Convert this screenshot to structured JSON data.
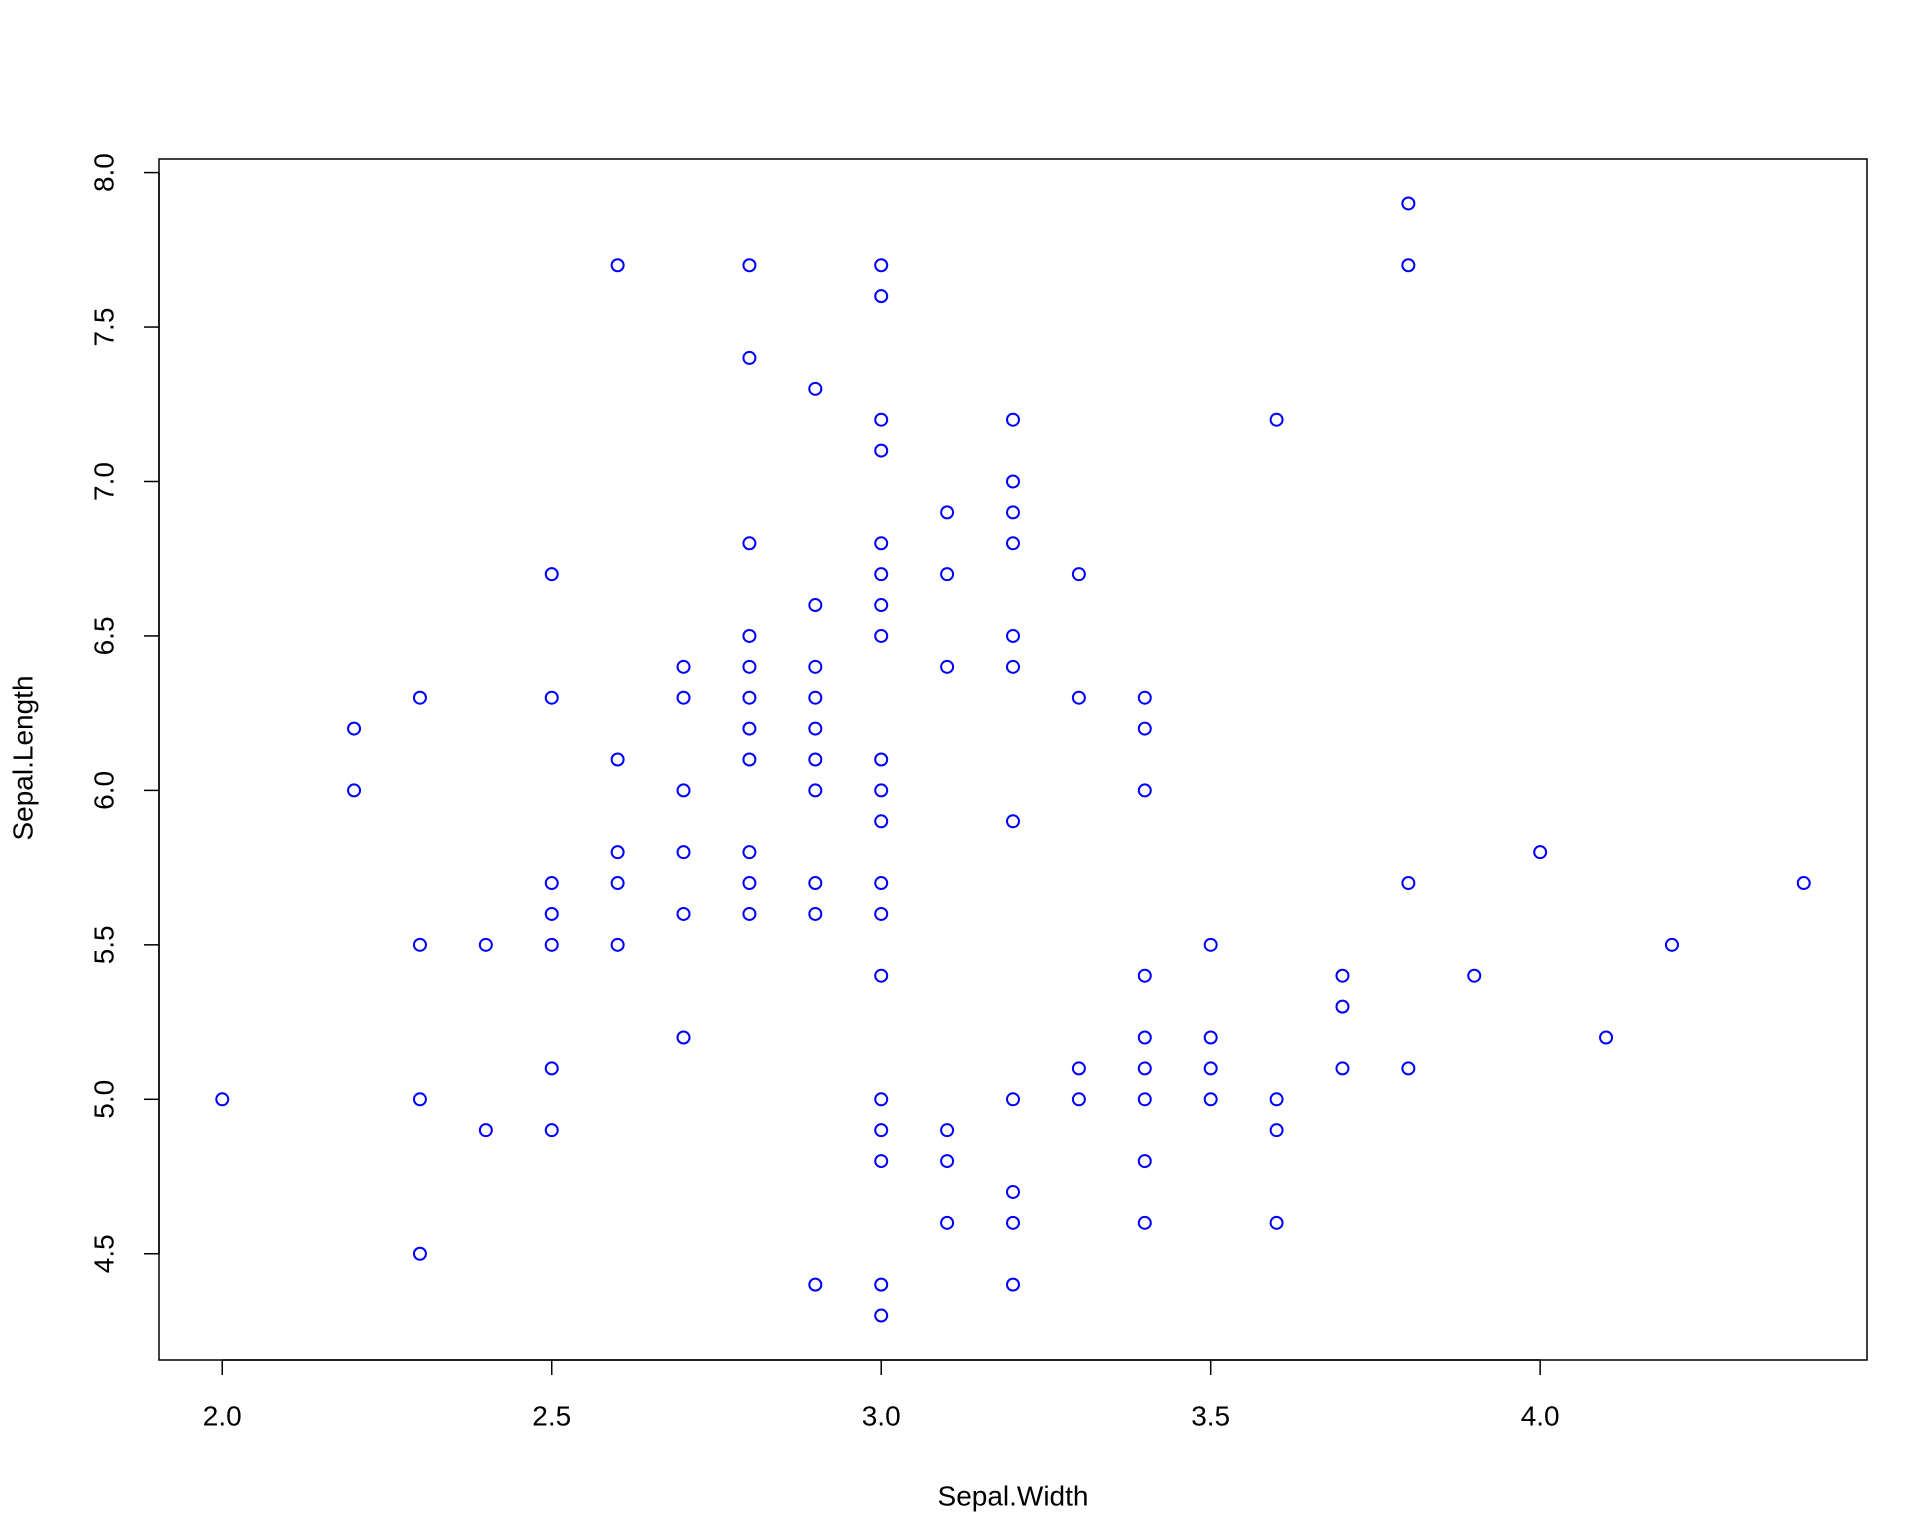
{
  "chart_data": {
    "type": "scatter",
    "xlabel": "Sepal.Width",
    "ylabel": "Sepal.Length",
    "color": "#0000ff",
    "x": [
      2.0,
      2.2,
      2.2,
      2.3,
      2.3,
      2.3,
      2.3,
      2.4,
      2.4,
      2.5,
      2.5,
      2.5,
      2.5,
      2.5,
      2.5,
      2.5,
      2.6,
      2.6,
      2.6,
      2.6,
      2.6,
      2.7,
      2.7,
      2.7,
      2.7,
      2.7,
      2.7,
      2.8,
      2.8,
      2.8,
      2.8,
      2.8,
      2.8,
      2.8,
      2.8,
      2.8,
      2.8,
      2.8,
      2.9,
      2.9,
      2.9,
      2.9,
      2.9,
      2.9,
      2.9,
      2.9,
      2.9,
      2.9,
      3.0,
      3.0,
      3.0,
      3.0,
      3.0,
      3.0,
      3.0,
      3.0,
      3.0,
      3.0,
      3.0,
      3.0,
      3.0,
      3.0,
      3.0,
      3.0,
      3.0,
      3.0,
      3.0,
      3.1,
      3.1,
      3.1,
      3.1,
      3.1,
      3.1,
      3.2,
      3.2,
      3.2,
      3.2,
      3.2,
      3.2,
      3.2,
      3.2,
      3.2,
      3.2,
      3.2,
      3.3,
      3.3,
      3.3,
      3.3,
      3.4,
      3.4,
      3.4,
      3.4,
      3.4,
      3.4,
      3.4,
      3.4,
      3.4,
      3.5,
      3.5,
      3.5,
      3.5,
      3.6,
      3.6,
      3.6,
      3.6,
      3.7,
      3.7,
      3.7,
      3.8,
      3.8,
      3.8,
      3.8,
      3.9,
      4.0,
      4.1,
      4.2,
      4.4
    ],
    "values": [
      5.0,
      6.2,
      6.0,
      6.3,
      5.5,
      5.0,
      4.5,
      5.5,
      4.9,
      6.7,
      6.3,
      5.7,
      5.6,
      5.5,
      5.1,
      4.9,
      7.7,
      6.1,
      5.8,
      5.7,
      5.5,
      6.4,
      6.3,
      6.0,
      5.8,
      5.6,
      5.2,
      7.7,
      7.4,
      6.8,
      6.5,
      6.4,
      6.3,
      6.2,
      6.1,
      5.8,
      5.7,
      5.6,
      7.3,
      6.6,
      6.4,
      6.3,
      6.2,
      6.1,
      6.0,
      5.7,
      5.6,
      4.4,
      7.7,
      7.6,
      7.2,
      7.1,
      6.8,
      6.7,
      6.6,
      6.5,
      6.1,
      6.0,
      5.9,
      5.7,
      5.6,
      5.4,
      5.0,
      4.9,
      4.8,
      4.4,
      4.3,
      6.9,
      6.7,
      6.4,
      4.9,
      4.8,
      4.6,
      7.2,
      7.0,
      6.9,
      6.8,
      6.5,
      6.4,
      5.9,
      5.0,
      4.7,
      4.6,
      4.4,
      6.7,
      6.3,
      5.1,
      5.0,
      6.3,
      6.2,
      6.0,
      5.4,
      5.2,
      5.1,
      5.0,
      4.8,
      4.6,
      5.5,
      5.2,
      5.1,
      5.0,
      7.2,
      5.0,
      4.9,
      4.6,
      5.4,
      5.3,
      5.1,
      7.9,
      7.7,
      5.7,
      5.1,
      5.4,
      5.8,
      5.2,
      5.5,
      5.7
    ],
    "xlim": [
      1.904,
      4.496
    ],
    "ylim": [
      4.156,
      8.044
    ],
    "xticks": [
      {
        "value": 2,
        "label": "2.0"
      },
      2.5,
      {
        "value": 3,
        "label": "3.0"
      },
      3.5,
      {
        "value": 4,
        "label": "4.0"
      }
    ],
    "yticks": [
      4.5,
      {
        "value": 5,
        "label": "5.0"
      },
      5.5,
      {
        "value": 6,
        "label": "6.0"
      },
      6.5,
      {
        "value": 7,
        "label": "7.0"
      },
      7.5,
      {
        "value": 8,
        "label": "8.0"
      }
    ]
  }
}
